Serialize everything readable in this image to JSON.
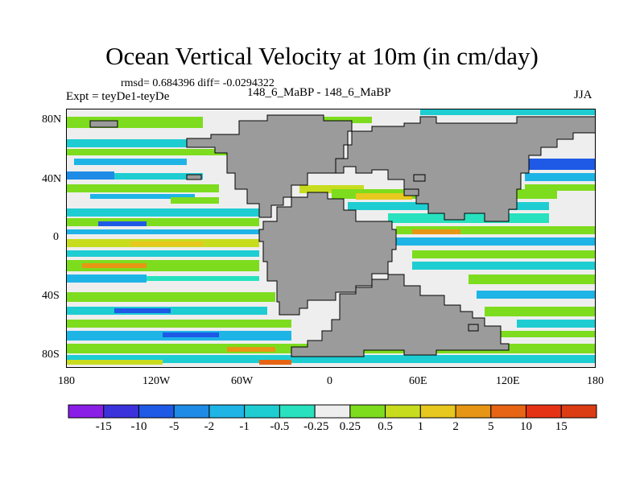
{
  "title": "Ocean Vertical Velocity at 10m (in cm/day)",
  "stats": "rmsd= 0.684396 diff= -0.0294322",
  "expt_label": "Expt = teyDe1-teyDe",
  "center_label": "148_6_MaBP - 148_6_MaBP",
  "season": "JJA",
  "y_axis": [
    "80N",
    "40N",
    "0",
    "40S",
    "80S"
  ],
  "x_axis": [
    "180",
    "120W",
    "60W",
    "0",
    "60E",
    "120E",
    "180"
  ],
  "colorbar": {
    "labels": [
      "-15",
      "-10",
      "-5",
      "-2",
      "-1",
      "-0.5",
      "-0.25",
      "0.25",
      "0.5",
      "1",
      "2",
      "5",
      "10",
      "15"
    ],
    "colors": [
      "#8a1ee6",
      "#3c32dc",
      "#1e5ae6",
      "#1e8ce6",
      "#1eb4e6",
      "#1ecdd2",
      "#28e1be",
      "#eeeeee",
      "#7ddc1e",
      "#c8dc1e",
      "#e6c81e",
      "#e69614",
      "#e66414",
      "#e63214"
    ]
  },
  "colors": {
    "land": "#9b9b9b",
    "ocean_neutral": "#eeeeee",
    "coast": "#000000"
  }
}
